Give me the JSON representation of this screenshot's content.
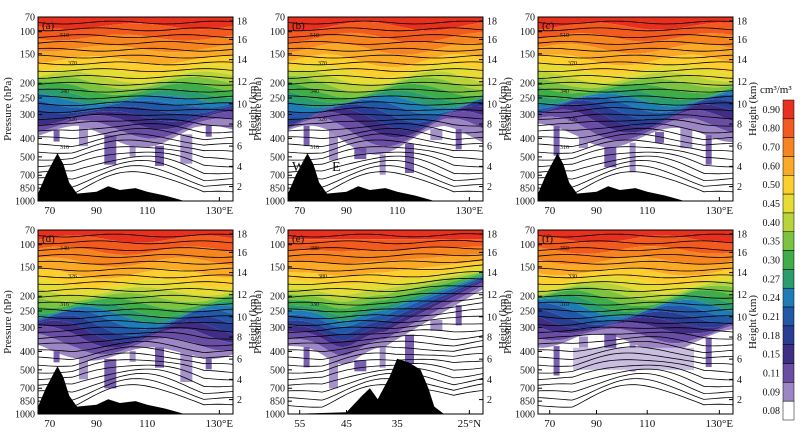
{
  "figure": {
    "colorbar_unit": "cm³/m³"
  },
  "chart_data": {
    "type": "heatmap",
    "colorbar": {
      "levels": [
        "0.90",
        "0.80",
        "0.70",
        "0.60",
        "0.50",
        "0.45",
        "0.40",
        "0.35",
        "0.30",
        "0.27",
        "0.24",
        "0.21",
        "0.18",
        "0.15",
        "0.11",
        "0.09",
        "0.08"
      ],
      "colors": [
        "#e8301e",
        "#f25a1e",
        "#f7851f",
        "#fbaa27",
        "#fccf2e",
        "#e7dc33",
        "#b9d43a",
        "#7cc43f",
        "#3fae49",
        "#2a9c6e",
        "#1f7db6",
        "#2158a8",
        "#2a3d95",
        "#3f2d86",
        "#6a4ea6",
        "#9c86c4",
        "#ffffff"
      ]
    },
    "y_pressure_ticks": [
      "70",
      "100",
      "150",
      "200",
      "250",
      "300",
      "400",
      "500",
      "700",
      "850",
      "1000"
    ],
    "y_height_ticks": [
      "18",
      "16",
      "14",
      "12",
      "10",
      "8",
      "6",
      "4",
      "2"
    ],
    "ylabel": "Pressure (hPa)",
    "y2label": "Height (km)",
    "panels": [
      {
        "label": "(a)",
        "xticks": [
          "70",
          "90",
          "110",
          "130°E"
        ],
        "contour_labels": [
          "510",
          "370",
          "340",
          "326",
          "316"
        ]
      },
      {
        "label": "(b)",
        "xticks": [
          "70",
          "90",
          "110",
          "130°E"
        ],
        "contour_labels": [
          "510",
          "370",
          "340",
          "326",
          "316"
        ],
        "markers": [
          "W",
          "E"
        ]
      },
      {
        "label": "(c)",
        "xticks": [
          "70",
          "90",
          "110",
          "130°E"
        ],
        "contour_labels": [
          "510",
          "370",
          "340",
          "326",
          "316"
        ]
      },
      {
        "label": "(d)",
        "xticks": [
          "70",
          "90",
          "110",
          "130°E"
        ],
        "contour_labels": [
          "340",
          "326",
          "316"
        ]
      },
      {
        "label": "(e)",
        "xticks": [
          "55",
          "45",
          "35",
          "25°N"
        ],
        "contour_labels": [
          "380",
          "380",
          "330"
        ]
      },
      {
        "label": "(f)",
        "xticks": [
          "70",
          "90",
          "110",
          "130°E"
        ],
        "contour_labels": [
          "350",
          "330",
          "310"
        ]
      }
    ]
  }
}
